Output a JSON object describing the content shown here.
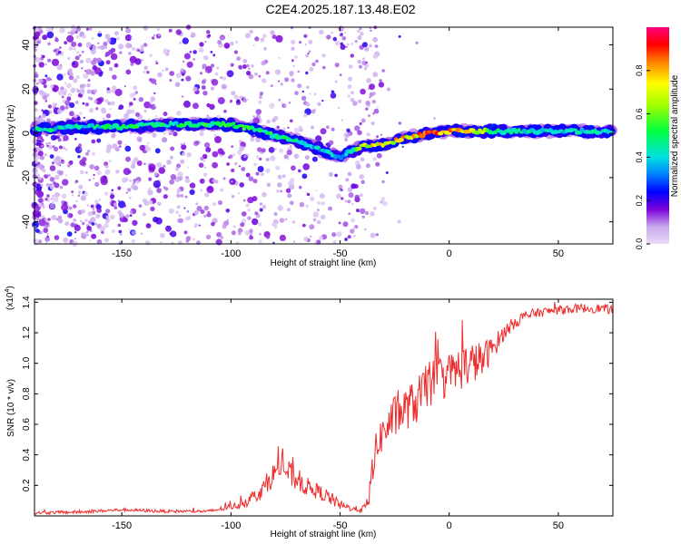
{
  "title": "C2E4.2025.187.13.48.E02",
  "chart_data": [
    {
      "type": "heatmap",
      "xlabel": "Height of straight line (km)",
      "ylabel": "Frequency (Hz)",
      "xlim": [
        -190,
        75
      ],
      "ylim": [
        -50,
        48
      ],
      "xticks": [
        -150,
        -100,
        -50,
        0,
        50
      ],
      "yticks": [
        -40,
        -20,
        0,
        20,
        40
      ],
      "colorbar": {
        "label": "Normalized spectral amplitude",
        "range": [
          0,
          1
        ],
        "ticks": [
          0.0,
          0.2,
          0.4,
          0.6,
          0.8
        ]
      },
      "ridge": [
        {
          "x": -185,
          "y": 2,
          "a": 0.45
        },
        {
          "x": -170,
          "y": 3,
          "a": 0.45
        },
        {
          "x": -150,
          "y": 3,
          "a": 0.5
        },
        {
          "x": -130,
          "y": 4,
          "a": 0.5
        },
        {
          "x": -115,
          "y": 4,
          "a": 0.5
        },
        {
          "x": -100,
          "y": 4,
          "a": 0.55
        },
        {
          "x": -90,
          "y": 2,
          "a": 0.55
        },
        {
          "x": -80,
          "y": -1,
          "a": 0.5
        },
        {
          "x": -70,
          "y": -3,
          "a": 0.45
        },
        {
          "x": -60,
          "y": -7,
          "a": 0.4
        },
        {
          "x": -50,
          "y": -11,
          "a": 0.4
        },
        {
          "x": -45,
          "y": -8,
          "a": 0.45
        },
        {
          "x": -40,
          "y": -6,
          "a": 0.75
        },
        {
          "x": -30,
          "y": -5,
          "a": 0.8
        },
        {
          "x": -20,
          "y": -2,
          "a": 0.8
        },
        {
          "x": -10,
          "y": 0,
          "a": 0.9
        },
        {
          "x": 0,
          "y": 1,
          "a": 0.95
        },
        {
          "x": 10,
          "y": 1,
          "a": 0.9
        },
        {
          "x": 20,
          "y": 1,
          "a": 0.5
        },
        {
          "x": 40,
          "y": 1,
          "a": 0.45
        },
        {
          "x": 60,
          "y": 1,
          "a": 0.45
        },
        {
          "x": 75,
          "y": 1,
          "a": 0.45
        }
      ]
    },
    {
      "type": "line",
      "xlabel": "Height of straight line (km)",
      "ylabel": "SNR (10 * v/v)",
      "yscale_label": "(x10",
      "yscale_exp": "4",
      "xlim": [
        -190,
        75
      ],
      "ylim": [
        0,
        1.42
      ],
      "xticks": [
        -150,
        -100,
        -50,
        0,
        50
      ],
      "yticks": [
        0.2,
        0.4,
        0.6,
        0.8,
        1.0,
        1.2,
        1.4
      ],
      "series": [
        {
          "color": "#ee2a2a",
          "x": [
            -190,
            -170,
            -150,
            -130,
            -110,
            -100,
            -95,
            -90,
            -85,
            -80,
            -77,
            -75,
            -72,
            -68,
            -64,
            -60,
            -55,
            -50,
            -45,
            -40,
            -37,
            -35,
            -32,
            -30,
            -25,
            -20,
            -15,
            -10,
            -5,
            0,
            5,
            10,
            15,
            20,
            25,
            30,
            35,
            40,
            50,
            60,
            70,
            75
          ],
          "y": [
            0.02,
            0.025,
            0.04,
            0.03,
            0.03,
            0.06,
            0.08,
            0.12,
            0.18,
            0.28,
            0.35,
            0.3,
            0.26,
            0.22,
            0.18,
            0.16,
            0.12,
            0.07,
            0.05,
            0.04,
            0.08,
            0.35,
            0.5,
            0.55,
            0.65,
            0.7,
            0.75,
            0.85,
            0.9,
            0.92,
            0.97,
            1.0,
            1.02,
            1.1,
            1.2,
            1.27,
            1.31,
            1.33,
            1.35,
            1.36,
            1.36,
            1.35
          ],
          "noise": [
            0.01,
            0.01,
            0.01,
            0.01,
            0.01,
            0.02,
            0.03,
            0.05,
            0.06,
            0.08,
            0.1,
            0.1,
            0.08,
            0.07,
            0.06,
            0.05,
            0.05,
            0.03,
            0.02,
            0.02,
            0.05,
            0.12,
            0.12,
            0.12,
            0.14,
            0.14,
            0.15,
            0.15,
            0.15,
            0.15,
            0.15,
            0.14,
            0.12,
            0.08,
            0.05,
            0.04,
            0.04,
            0.03,
            0.03,
            0.03,
            0.03,
            0.03
          ]
        }
      ]
    }
  ]
}
